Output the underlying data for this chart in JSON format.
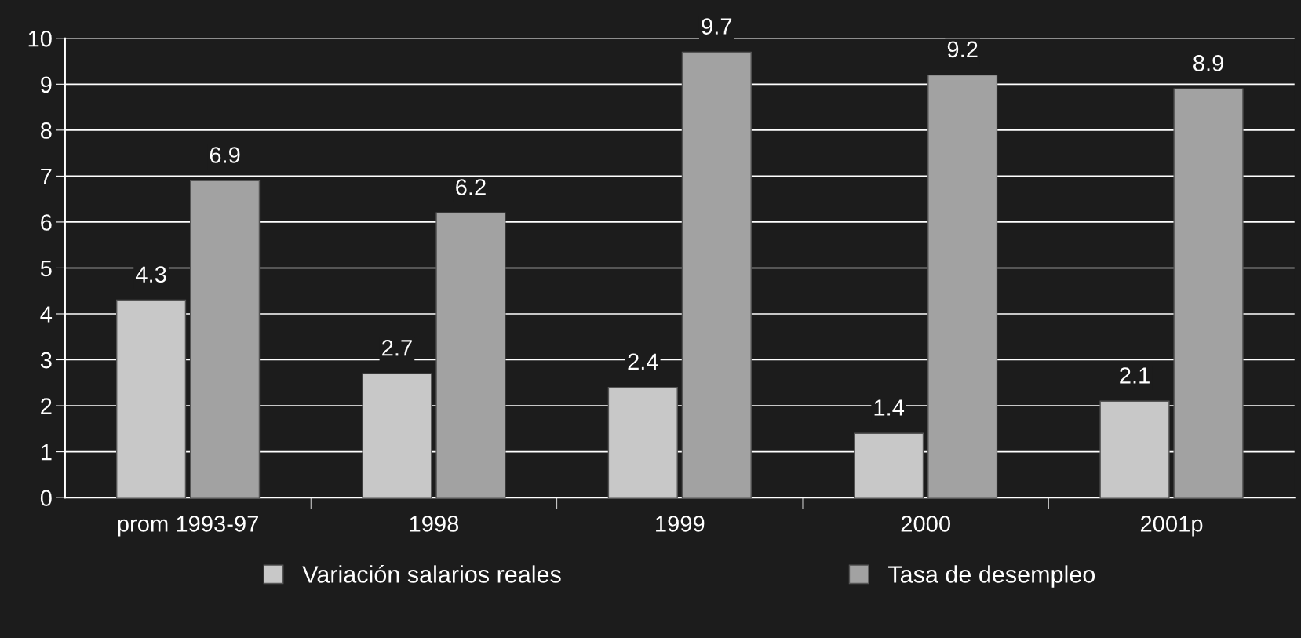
{
  "chart_data": {
    "type": "bar",
    "categories": [
      "prom 1993-97",
      "1998",
      "1999",
      "2000",
      "2001p"
    ],
    "series": [
      {
        "name": "Variación salarios reales",
        "color": "#c8c8c8",
        "values": [
          4.3,
          2.7,
          2.4,
          1.4,
          2.1
        ]
      },
      {
        "name": "Tasa de desempleo",
        "color": "#a2a2a2",
        "values": [
          6.9,
          6.2,
          9.7,
          9.2,
          8.9
        ]
      }
    ],
    "ylim": [
      0,
      10
    ],
    "yticks": [
      0,
      1,
      2,
      3,
      4,
      5,
      6,
      7,
      8,
      9,
      10
    ],
    "grid": "y",
    "legend": "bottom",
    "data_labels": true
  }
}
